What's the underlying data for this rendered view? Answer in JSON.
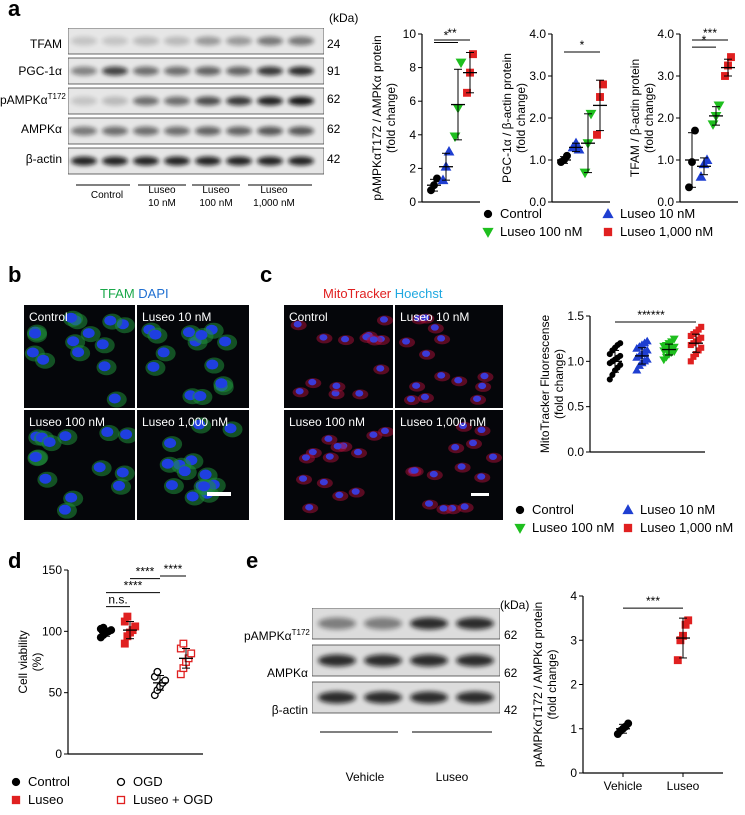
{
  "panels": {
    "a": {
      "letter": "a",
      "kda_label": "(kDa)",
      "blots": [
        {
          "name": "TFAM",
          "kda": "24"
        },
        {
          "name": "PGC-1α",
          "kda": "91"
        },
        {
          "name": "pAMPKα",
          "sup": "T172",
          "kda": "62"
        },
        {
          "name": "AMPKα",
          "kda": "62"
        },
        {
          "name": "β-actin",
          "kda": "42"
        }
      ],
      "groups": [
        {
          "line1": "Control",
          "line2": ""
        },
        {
          "line1": "Luseo",
          "line2": "10 nM"
        },
        {
          "line1": "Luseo",
          "line2": "100 nM"
        },
        {
          "line1": "Luseo",
          "line2": "1,000 nM"
        }
      ],
      "legend": [
        {
          "label": "Control",
          "color": "#000000",
          "marker": "circle"
        },
        {
          "label": "Luseo 10 nM",
          "color": "#1f3fd1",
          "marker": "triangle-up"
        },
        {
          "label": "Luseo 100 nM",
          "color": "#1fbf1f",
          "marker": "triangle-down"
        },
        {
          "label": "Luseo 1,000 nM",
          "color": "#e02020",
          "marker": "square"
        }
      ]
    },
    "b": {
      "letter": "b",
      "title_part1": "TFAM",
      "title_part2": "DAPI",
      "title_color1": "#1aa84a",
      "title_color2": "#1f6fd1",
      "images": [
        "Control",
        "Luseo 10 nM",
        "Luseo 100 nM",
        "Luseo 1,000 nM"
      ]
    },
    "c": {
      "letter": "c",
      "title_part1": "MitoTracker",
      "title_part2": "Hoechst",
      "title_color1": "#e02020",
      "title_color2": "#1fa8e0",
      "images": [
        "Control",
        "Luseo 10 nM",
        "Luseo 100 nM",
        "Luseo 1,000 nM"
      ],
      "legend": [
        {
          "label": "Control",
          "color": "#000000",
          "marker": "circle"
        },
        {
          "label": "Luseo 10 nM",
          "color": "#1f3fd1",
          "marker": "triangle-up"
        },
        {
          "label": "Luseo 100 nM",
          "color": "#1fbf1f",
          "marker": "triangle-down"
        },
        {
          "label": "Luseo 1,000 nM",
          "color": "#e02020",
          "marker": "square"
        }
      ]
    },
    "d": {
      "letter": "d",
      "legend": [
        {
          "label": "Control",
          "color": "#000000",
          "marker": "circle"
        },
        {
          "label": "OGD",
          "color": "#000000",
          "marker": "circle-open"
        },
        {
          "label": "Luseo",
          "color": "#e02020",
          "marker": "square"
        },
        {
          "label": "Luseo + OGD",
          "color": "#e02020",
          "marker": "square-open"
        }
      ]
    },
    "e": {
      "letter": "e",
      "kda_label": "(kDa)",
      "blots": [
        {
          "name": "pAMPKα",
          "sup": "T172",
          "kda": "62"
        },
        {
          "name": "AMPKα",
          "kda": "62"
        },
        {
          "name": "β-actin",
          "kda": "42"
        }
      ],
      "groups": [
        "Vehicle",
        "Luseo"
      ]
    }
  },
  "chart_data": [
    {
      "id": "a1",
      "type": "scatter",
      "ylabel": "pAMPKαT172 / AMPKα protein (fold change)",
      "ylim": [
        0,
        10
      ],
      "yticks": [
        "0",
        "2",
        "4",
        "6",
        "8",
        "10"
      ],
      "groups": [
        {
          "name": "Control",
          "points": [
            0.7,
            1.0,
            1.4
          ],
          "mean": 1.0,
          "sd": 0.35
        },
        {
          "name": "Luseo 10 nM",
          "points": [
            1.3,
            2.1,
            3.0
          ],
          "mean": 2.1,
          "sd": 0.8
        },
        {
          "name": "Luseo 100 nM",
          "points": [
            3.9,
            5.6,
            8.3
          ],
          "mean": 5.8,
          "sd": 2.1
        },
        {
          "name": "Luseo 1,000 nM",
          "points": [
            6.5,
            7.7,
            8.8
          ],
          "mean": 7.7,
          "sd": 1.2
        }
      ],
      "significance": [
        {
          "from": 0,
          "to": 2,
          "label": "*"
        },
        {
          "from": 0,
          "to": 3,
          "label": "**"
        }
      ]
    },
    {
      "id": "a2",
      "type": "scatter",
      "ylabel": "PGC-1α / β-actin protein (fold change)",
      "ylim": [
        0,
        4
      ],
      "yticks": [
        "0.0",
        "1.0",
        "2.0",
        "3.0",
        "4.0"
      ],
      "groups": [
        {
          "name": "Control",
          "points": [
            0.95,
            1.0,
            1.1
          ],
          "mean": 1.0,
          "sd": 0.08
        },
        {
          "name": "Luseo 10 nM",
          "points": [
            1.3,
            1.4,
            1.25
          ],
          "mean": 1.3,
          "sd": 0.1
        },
        {
          "name": "Luseo 100 nM",
          "points": [
            0.7,
            1.4,
            2.1
          ],
          "mean": 1.4,
          "sd": 0.7
        },
        {
          "name": "Luseo 1,000 nM",
          "points": [
            1.6,
            2.5,
            2.8
          ],
          "mean": 2.3,
          "sd": 0.6
        }
      ],
      "significance": [
        {
          "from": 0,
          "to": 3,
          "label": "*"
        }
      ]
    },
    {
      "id": "a3",
      "type": "scatter",
      "ylabel": "TFAM / β-actin protein (fold change)",
      "ylim": [
        0,
        4
      ],
      "yticks": [
        "0.0",
        "1.0",
        "2.0",
        "3.0",
        "4.0"
      ],
      "groups": [
        {
          "name": "Control",
          "points": [
            0.35,
            0.95,
            1.7
          ],
          "mean": 1.0,
          "sd": 0.65
        },
        {
          "name": "Luseo 10 nM",
          "points": [
            0.6,
            0.9,
            1.0
          ],
          "mean": 0.85,
          "sd": 0.2
        },
        {
          "name": "Luseo 100 nM",
          "points": [
            1.85,
            2.05,
            2.3
          ],
          "mean": 2.05,
          "sd": 0.22
        },
        {
          "name": "Luseo 1,000 nM",
          "points": [
            3.0,
            3.25,
            3.45
          ],
          "mean": 3.2,
          "sd": 0.2
        }
      ],
      "significance": [
        {
          "from": 0,
          "to": 2,
          "label": "*"
        },
        {
          "from": 0,
          "to": 3,
          "label": "***"
        }
      ]
    },
    {
      "id": "c1",
      "type": "scatter",
      "ylabel": "MitoTracker Fluorescense (fold change)",
      "ylim": [
        0,
        1.5
      ],
      "yticks": [
        "0.0",
        "0.5",
        "1.0",
        "1.5"
      ],
      "groups": [
        {
          "name": "Control",
          "points": [
            0.8,
            0.85,
            0.9,
            0.93,
            0.96,
            0.98,
            1.0,
            1.02,
            1.04,
            1.06,
            1.08,
            1.12,
            1.15,
            1.18,
            1.2
          ],
          "mean": 1.0,
          "sd": 0.12
        },
        {
          "name": "Luseo 10 nM",
          "points": [
            0.9,
            0.95,
            0.98,
            1.0,
            1.02,
            1.04,
            1.06,
            1.08,
            1.1,
            1.12,
            1.14,
            1.16,
            1.18,
            1.2,
            1.22
          ],
          "mean": 1.06,
          "sd": 0.09
        },
        {
          "name": "Luseo 100 nM",
          "points": [
            1.02,
            1.05,
            1.08,
            1.1,
            1.11,
            1.12,
            1.13,
            1.14,
            1.15,
            1.16,
            1.17,
            1.18,
            1.2,
            1.22,
            1.25
          ],
          "mean": 1.13,
          "sd": 0.06
        },
        {
          "name": "Luseo 1,000 nM",
          "points": [
            1.0,
            1.05,
            1.08,
            1.12,
            1.15,
            1.18,
            1.2,
            1.22,
            1.24,
            1.26,
            1.28,
            1.3,
            1.32,
            1.35,
            1.38
          ],
          "mean": 1.2,
          "sd": 0.1
        }
      ],
      "significance": [
        {
          "from": 0,
          "to": 2,
          "label": "**"
        },
        {
          "from": 0,
          "to": 3,
          "label": "****"
        }
      ]
    },
    {
      "id": "d1",
      "type": "scatter",
      "ylabel": "Cell viability (%)",
      "ylim": [
        0,
        150
      ],
      "yticks": [
        "0",
        "50",
        "100",
        "150"
      ],
      "groups": [
        {
          "name": "Control",
          "points": [
            95,
            97,
            99,
            100,
            101,
            102,
            103
          ],
          "mean": 99,
          "sd": 3
        },
        {
          "name": "Luseo",
          "points": [
            90,
            96,
            99,
            101,
            104,
            108,
            112
          ],
          "mean": 101,
          "sd": 7
        },
        {
          "name": "OGD",
          "points": [
            48,
            52,
            55,
            58,
            60,
            63,
            67
          ],
          "mean": 58,
          "sd": 6
        },
        {
          "name": "Luseo + OGD",
          "points": [
            65,
            70,
            75,
            78,
            82,
            86,
            90
          ],
          "mean": 78,
          "sd": 8
        }
      ],
      "significance": [
        {
          "from": 0,
          "to": 1,
          "label": "n.s."
        },
        {
          "from": 0,
          "to": 2,
          "label": "****"
        },
        {
          "from": 1,
          "to": 2,
          "label": "****"
        },
        {
          "from": 2,
          "to": 3,
          "label": "****"
        }
      ]
    },
    {
      "id": "e1",
      "type": "scatter",
      "ylabel": "pAMPKαT172 / AMPKα protein (fold change)",
      "ylim": [
        0,
        4
      ],
      "yticks": [
        "0",
        "1",
        "2",
        "3",
        "4"
      ],
      "categories": [
        "Vehicle",
        "Luseo"
      ],
      "groups": [
        {
          "name": "Vehicle",
          "points": [
            0.88,
            0.95,
            1.0,
            1.05,
            1.12
          ],
          "mean": 1.0,
          "sd": 0.1
        },
        {
          "name": "Luseo",
          "points": [
            2.55,
            3.0,
            3.1,
            3.35,
            3.45
          ],
          "mean": 3.05,
          "sd": 0.45
        }
      ],
      "significance": [
        {
          "from": 0,
          "to": 1,
          "label": "***"
        }
      ]
    }
  ]
}
